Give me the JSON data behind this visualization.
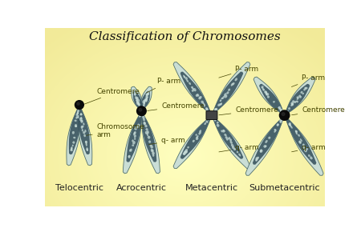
{
  "title": "Classification of Chromosomes",
  "title_fontsize": 11,
  "bg_color_center": "#fffde0",
  "bg_color_edge": "#e8d890",
  "chromosome_types": [
    "Telocentric",
    "Acrocentric",
    "Metacentric",
    "Submetacentric"
  ],
  "label_fontsize": 8,
  "centromere_color": "#0a0a0a",
  "arm_outer": "#c8ddd8",
  "arm_border": "#4a6a6a",
  "arm_inner_bg": "#3a5560",
  "chromatin_color": "#c8ddd8",
  "annotation_color": "#444400",
  "annotation_fontsize": 6.5
}
